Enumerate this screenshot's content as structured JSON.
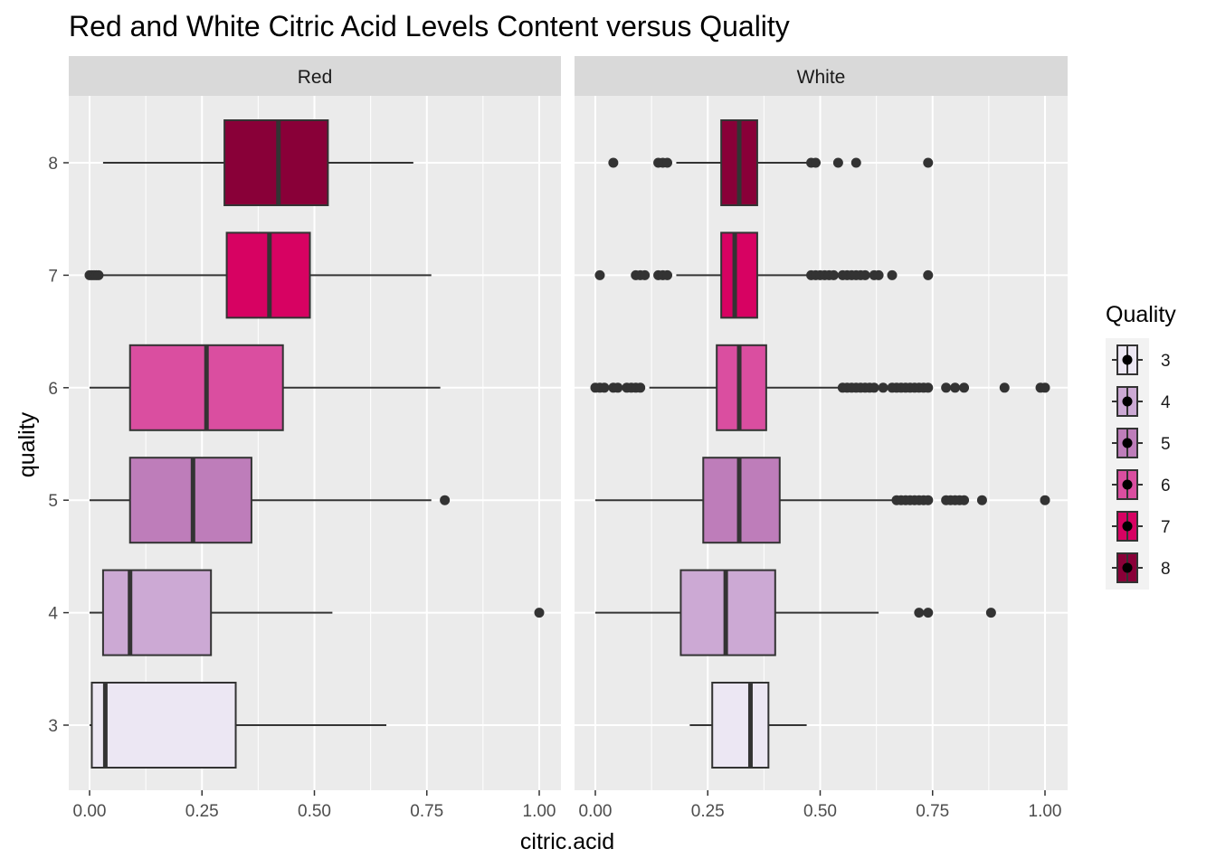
{
  "chart_data": {
    "type": "boxplot",
    "title": "Red and White Citric Acid Levels Content versus Quality",
    "xlabel": "citric.acid",
    "ylabel": "quality",
    "xlim": [
      0,
      1
    ],
    "x_ticks": [
      "0.00",
      "0.25",
      "0.50",
      "0.75",
      "1.00"
    ],
    "y_categories": [
      "3",
      "4",
      "5",
      "6",
      "7",
      "8"
    ],
    "grid": true,
    "legend": {
      "title": "Quality",
      "position": "right",
      "items": [
        {
          "label": "3",
          "color": "#ECE7F3"
        },
        {
          "label": "4",
          "color": "#CCA9D4"
        },
        {
          "label": "5",
          "color": "#BE7DBA"
        },
        {
          "label": "6",
          "color": "#DA4EA0"
        },
        {
          "label": "7",
          "color": "#D70262"
        },
        {
          "label": "8",
          "color": "#890038"
        }
      ]
    },
    "panels": [
      {
        "name": "Red",
        "boxes": [
          {
            "quality": "3",
            "min": 0.0,
            "q1": 0.005,
            "median": 0.035,
            "q3": 0.325,
            "max": 0.66,
            "outliers": []
          },
          {
            "quality": "4",
            "min": 0.0,
            "q1": 0.03,
            "median": 0.09,
            "q3": 0.27,
            "max": 0.54,
            "outliers": [
              1.0
            ]
          },
          {
            "quality": "5",
            "min": 0.0,
            "q1": 0.09,
            "median": 0.23,
            "q3": 0.36,
            "max": 0.76,
            "outliers": [
              0.79
            ]
          },
          {
            "quality": "6",
            "min": 0.0,
            "q1": 0.09,
            "median": 0.26,
            "q3": 0.43,
            "max": 0.78,
            "outliers": []
          },
          {
            "quality": "7",
            "min": 0.01,
            "q1": 0.305,
            "median": 0.4,
            "q3": 0.49,
            "max": 0.76,
            "outliers": [
              0.0,
              0.005,
              0.01,
              0.015,
              0.02
            ]
          },
          {
            "quality": "8",
            "min": 0.03,
            "q1": 0.3,
            "median": 0.42,
            "q3": 0.53,
            "max": 0.72,
            "outliers": []
          }
        ]
      },
      {
        "name": "White",
        "boxes": [
          {
            "quality": "3",
            "min": 0.21,
            "q1": 0.26,
            "median": 0.345,
            "q3": 0.385,
            "max": 0.47,
            "outliers": []
          },
          {
            "quality": "4",
            "min": 0.0,
            "q1": 0.19,
            "median": 0.29,
            "q3": 0.4,
            "max": 0.63,
            "outliers": [
              0.72,
              0.74,
              0.88
            ]
          },
          {
            "quality": "5",
            "min": 0.0,
            "q1": 0.24,
            "median": 0.32,
            "q3": 0.41,
            "max": 0.66,
            "outliers": [
              0.67,
              0.68,
              0.69,
              0.7,
              0.71,
              0.72,
              0.73,
              0.74,
              0.78,
              0.79,
              0.8,
              0.81,
              0.82,
              0.86,
              1.0
            ]
          },
          {
            "quality": "6",
            "min": 0.12,
            "q1": 0.27,
            "median": 0.32,
            "q3": 0.38,
            "max": 0.54,
            "outliers": [
              0.0,
              0.01,
              0.02,
              0.04,
              0.05,
              0.07,
              0.08,
              0.09,
              0.1,
              0.55,
              0.56,
              0.57,
              0.58,
              0.59,
              0.6,
              0.61,
              0.62,
              0.64,
              0.66,
              0.67,
              0.68,
              0.69,
              0.7,
              0.71,
              0.72,
              0.73,
              0.74,
              0.78,
              0.8,
              0.82,
              0.91,
              0.99,
              1.0
            ]
          },
          {
            "quality": "7",
            "min": 0.18,
            "q1": 0.28,
            "median": 0.31,
            "q3": 0.36,
            "max": 0.47,
            "outliers": [
              0.01,
              0.09,
              0.1,
              0.11,
              0.14,
              0.15,
              0.16,
              0.48,
              0.49,
              0.5,
              0.51,
              0.52,
              0.53,
              0.55,
              0.56,
              0.57,
              0.58,
              0.59,
              0.6,
              0.62,
              0.63,
              0.66,
              0.74
            ]
          },
          {
            "quality": "8",
            "min": 0.18,
            "q1": 0.28,
            "median": 0.32,
            "q3": 0.36,
            "max": 0.48,
            "outliers": [
              0.04,
              0.14,
              0.15,
              0.16,
              0.48,
              0.49,
              0.54,
              0.58,
              0.74
            ]
          }
        ]
      }
    ]
  }
}
